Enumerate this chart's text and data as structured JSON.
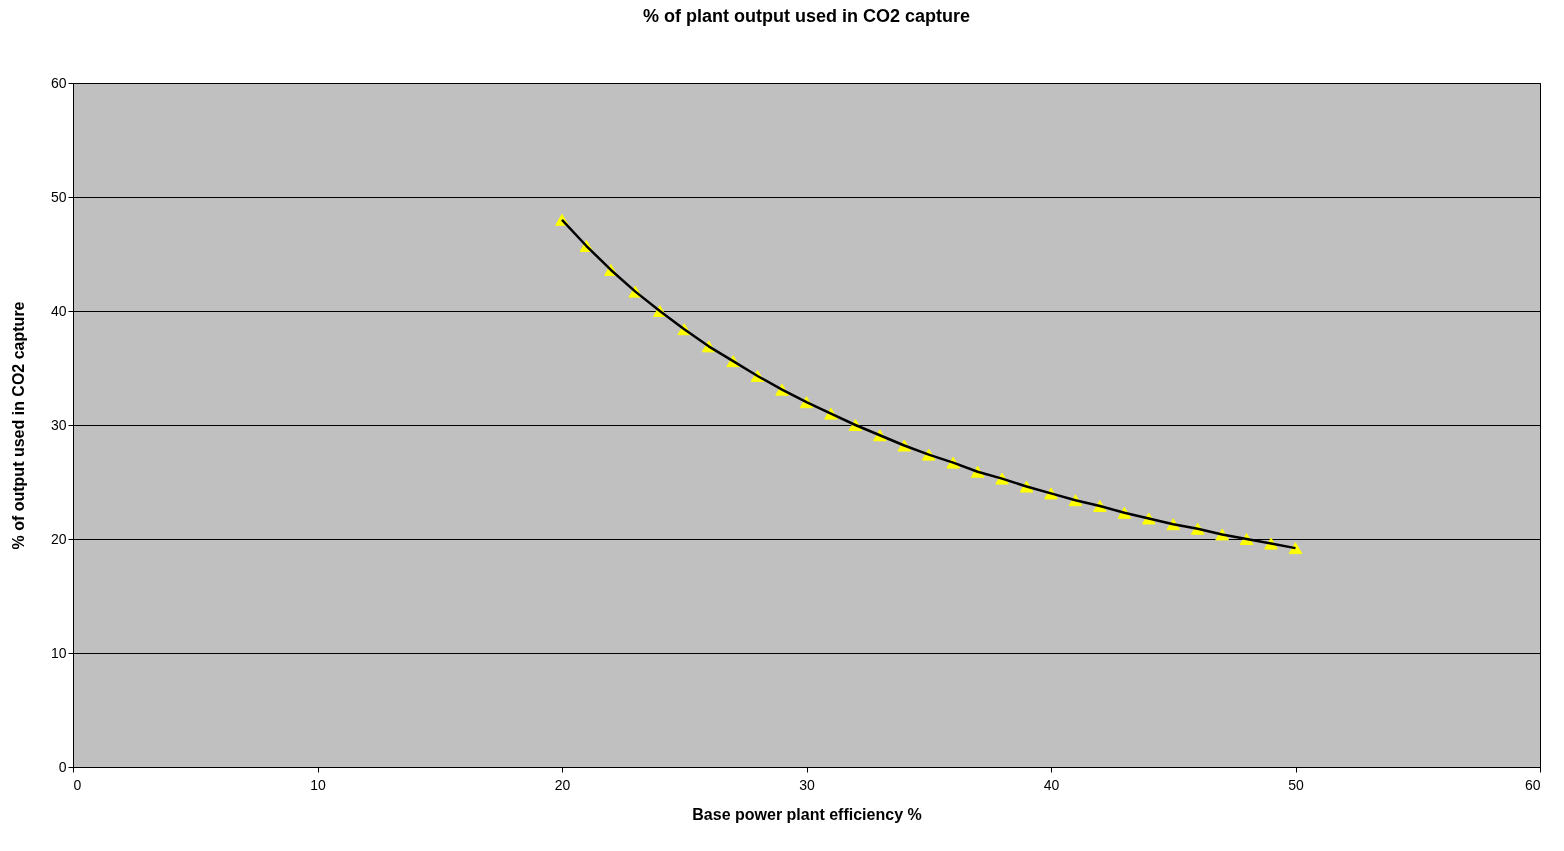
{
  "chart_data": {
    "type": "line",
    "title": "% of plant output used in CO2 capture",
    "xlabel": "Base power plant efficiency %",
    "ylabel": "% of output used in CO2 capture",
    "x": [
      20,
      21,
      22,
      23,
      24,
      25,
      26,
      27,
      28,
      29,
      30,
      31,
      32,
      33,
      34,
      35,
      36,
      37,
      38,
      39,
      40,
      41,
      42,
      43,
      44,
      45,
      46,
      47,
      48,
      49,
      50
    ],
    "series": [
      {
        "type": "scatter",
        "color": "#ffff00",
        "marker": "triangle",
        "values": [
          48,
          45.7,
          43.6,
          41.7,
          40,
          38.4,
          36.9,
          35.6,
          34.3,
          33.1,
          32,
          31,
          30,
          29.1,
          28.2,
          27.4,
          26.7,
          25.9,
          25.3,
          24.6,
          24,
          23.4,
          22.9,
          22.3,
          21.8,
          21.3,
          20.9,
          20.4,
          20,
          19.6,
          19.2
        ]
      },
      {
        "color": "#000000",
        "marker": "none",
        "line_style": "solid",
        "values": [
          48,
          45.7,
          43.6,
          41.7,
          40,
          38.4,
          36.9,
          35.6,
          34.3,
          33.1,
          32,
          31,
          30,
          29.1,
          28.2,
          27.4,
          26.7,
          25.9,
          25.3,
          24.6,
          24,
          23.4,
          22.9,
          22.3,
          21.8,
          21.3,
          20.9,
          20.4,
          20,
          19.6,
          19.2
        ]
      }
    ],
    "xlim": [
      0,
      60
    ],
    "xticks": [
      0,
      10,
      20,
      30,
      40,
      50,
      60
    ],
    "ylim": [
      0,
      60
    ],
    "yticks": [
      0,
      10,
      20,
      30,
      40,
      50,
      60
    ],
    "grid": "y"
  }
}
